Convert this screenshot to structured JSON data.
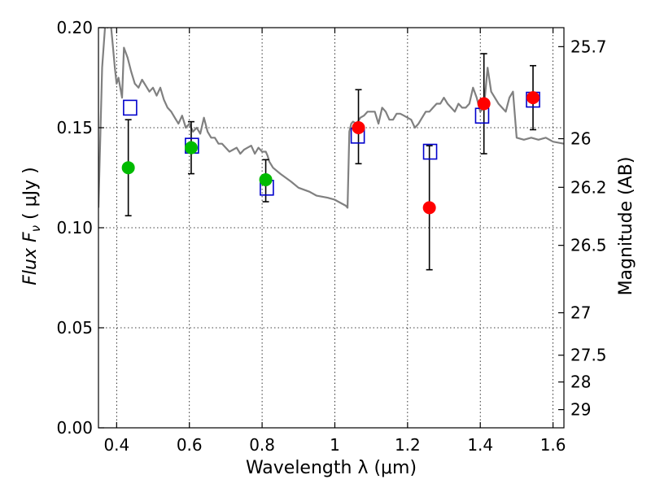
{
  "chart_data": {
    "type": "scatter",
    "xlabel": "Wavelength  λ (μm)",
    "ylabel": "Flux  F",
    "ylabel_sub": "ν",
    "ylabel_unit": "  ( μJy )",
    "y2label": "Magnitude (AB)",
    "xlim": [
      0.35,
      1.63
    ],
    "ylim": [
      0.0,
      0.2
    ],
    "x_ticks": [
      0.4,
      0.6,
      0.8,
      1.0,
      1.2,
      1.4,
      1.6
    ],
    "x_tick_labels": [
      "0.4",
      "0.6",
      "0.8",
      "1",
      "1.2",
      "1.4",
      "1.6"
    ],
    "y_ticks": [
      0.0,
      0.05,
      0.1,
      0.15,
      0.2
    ],
    "y_tick_labels": [
      "0.00",
      "0.05",
      "0.10",
      "0.15",
      "0.20"
    ],
    "y2_ticks": [
      {
        "label": "25.7",
        "flux": 0.1905
      },
      {
        "label": "26",
        "flux": 0.1445
      },
      {
        "label": "26.2",
        "flux": 0.1202
      },
      {
        "label": "26.5",
        "flux": 0.0912
      },
      {
        "label": "27",
        "flux": 0.0575
      },
      {
        "label": "27.5",
        "flux": 0.0363
      },
      {
        "label": "28",
        "flux": 0.0229
      },
      {
        "label": "29",
        "flux": 0.0091
      }
    ],
    "grid": true,
    "colors": {
      "model": "#808080",
      "green": "#00bb00",
      "red": "#ff0000",
      "blue": "#0000cc",
      "errorbar": "#000000"
    },
    "series": [
      {
        "kind": "model-spectrum",
        "x": [
          0.35,
          0.36,
          0.37,
          0.375,
          0.38,
          0.385,
          0.39,
          0.395,
          0.4,
          0.405,
          0.41,
          0.415,
          0.42,
          0.43,
          0.44,
          0.45,
          0.46,
          0.47,
          0.48,
          0.49,
          0.5,
          0.51,
          0.52,
          0.53,
          0.54,
          0.55,
          0.56,
          0.57,
          0.58,
          0.59,
          0.6,
          0.61,
          0.62,
          0.63,
          0.64,
          0.65,
          0.66,
          0.67,
          0.68,
          0.69,
          0.7,
          0.71,
          0.72,
          0.73,
          0.74,
          0.75,
          0.76,
          0.77,
          0.78,
          0.79,
          0.8,
          0.805,
          0.81,
          0.815,
          0.82,
          0.83,
          0.85,
          0.88,
          0.9,
          0.93,
          0.95,
          0.98,
          1.0,
          1.02,
          1.03,
          1.035,
          1.04,
          1.045,
          1.05,
          1.06,
          1.07,
          1.08,
          1.09,
          1.1,
          1.11,
          1.12,
          1.13,
          1.14,
          1.15,
          1.16,
          1.17,
          1.18,
          1.19,
          1.2,
          1.21,
          1.22,
          1.23,
          1.24,
          1.25,
          1.26,
          1.27,
          1.28,
          1.29,
          1.3,
          1.31,
          1.32,
          1.33,
          1.34,
          1.35,
          1.36,
          1.37,
          1.38,
          1.39,
          1.4,
          1.41,
          1.42,
          1.43,
          1.44,
          1.45,
          1.46,
          1.47,
          1.48,
          1.49,
          1.5,
          1.52,
          1.54,
          1.56,
          1.58,
          1.6,
          1.63
        ],
        "y": [
          0.11,
          0.18,
          0.205,
          0.2,
          0.205,
          0.2,
          0.19,
          0.18,
          0.172,
          0.175,
          0.17,
          0.165,
          0.19,
          0.185,
          0.178,
          0.172,
          0.17,
          0.174,
          0.171,
          0.168,
          0.17,
          0.166,
          0.17,
          0.164,
          0.16,
          0.158,
          0.155,
          0.152,
          0.156,
          0.15,
          0.152,
          0.148,
          0.15,
          0.147,
          0.155,
          0.148,
          0.145,
          0.145,
          0.142,
          0.142,
          0.14,
          0.138,
          0.139,
          0.14,
          0.137,
          0.139,
          0.14,
          0.141,
          0.137,
          0.14,
          0.138,
          0.138,
          0.138,
          0.136,
          0.133,
          0.13,
          0.127,
          0.123,
          0.12,
          0.118,
          0.116,
          0.115,
          0.114,
          0.112,
          0.111,
          0.11,
          0.148,
          0.152,
          0.153,
          0.152,
          0.155,
          0.156,
          0.158,
          0.158,
          0.158,
          0.152,
          0.16,
          0.158,
          0.154,
          0.154,
          0.157,
          0.157,
          0.156,
          0.155,
          0.154,
          0.15,
          0.152,
          0.155,
          0.158,
          0.158,
          0.16,
          0.162,
          0.162,
          0.165,
          0.162,
          0.16,
          0.158,
          0.162,
          0.16,
          0.16,
          0.162,
          0.17,
          0.165,
          0.158,
          0.16,
          0.18,
          0.168,
          0.165,
          0.162,
          0.16,
          0.158,
          0.165,
          0.168,
          0.145,
          0.144,
          0.145,
          0.144,
          0.145,
          0.143,
          0.142
        ]
      },
      {
        "kind": "observed-green",
        "x": [
          0.432,
          0.605,
          0.81
        ],
        "y": [
          0.13,
          0.14,
          0.124
        ],
        "err_low": [
          0.106,
          0.127,
          0.113
        ],
        "err_high": [
          0.154,
          0.153,
          0.134
        ]
      },
      {
        "kind": "observed-red",
        "x": [
          1.065,
          1.26,
          1.41,
          1.545
        ],
        "y": [
          0.15,
          0.11,
          0.162,
          0.165
        ],
        "err_low": [
          0.132,
          0.079,
          0.137,
          0.149
        ],
        "err_high": [
          0.169,
          0.141,
          0.187,
          0.181
        ]
      },
      {
        "kind": "model-boxes",
        "x": [
          0.437,
          0.607,
          0.813,
          1.063,
          1.262,
          1.405,
          1.545
        ],
        "y": [
          0.16,
          0.141,
          0.12,
          0.146,
          0.138,
          0.156,
          0.164
        ]
      }
    ]
  }
}
